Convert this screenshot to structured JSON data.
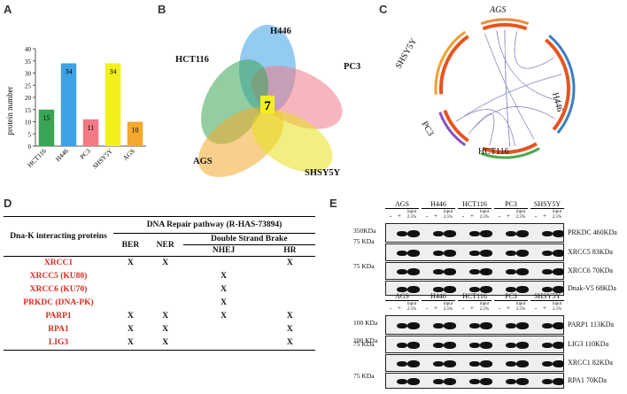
{
  "panels": {
    "a": "A",
    "b": "B",
    "c": "C",
    "d": "D",
    "e": "E"
  },
  "chart_data": {
    "type": "bar",
    "categories": [
      "HCT116",
      "H446",
      "PC3",
      "SHSY5Y",
      "AGS"
    ],
    "values": [
      15,
      34,
      11,
      34,
      10
    ],
    "ylabel": "protein number",
    "ylim": [
      0,
      40
    ],
    "yticks": [
      0,
      5,
      10,
      15,
      20,
      25,
      30,
      35,
      40
    ],
    "colors": [
      "#3aa655",
      "#3da1e6",
      "#f07a86",
      "#f3f11d",
      "#f3a92c"
    ]
  },
  "venn": {
    "labels": {
      "hct116": "HCT116",
      "h446": "H446",
      "pc3": "PC3",
      "ags": "AGS",
      "shsy5y": "SHSY5Y"
    },
    "center": "7"
  },
  "circos": {
    "labels": {
      "ags": "AGS",
      "shsy5y": "SHSY5Y",
      "h446": "H446",
      "pc3": "PC3",
      "hct116": "HCT116"
    }
  },
  "table": {
    "row_header": "Dna-K interacting proteins",
    "pathway_header": "DNA Repair pathway (R-HAS-73894)",
    "col_ber": "BER",
    "col_ner": "NER",
    "dsb_header": "Double Strand Brake",
    "col_nhej": "NHEJ",
    "col_hr": "HR",
    "rows": [
      {
        "name": "XRCC1",
        "ber": "X",
        "ner": "X",
        "nhej": "",
        "hr": "X"
      },
      {
        "name": "XRCC5 (KU80)",
        "ber": "",
        "ner": "",
        "nhej": "X",
        "hr": ""
      },
      {
        "name": "XRCC6 (KU70)",
        "ber": "",
        "ner": "",
        "nhej": "X",
        "hr": ""
      },
      {
        "name": "PRKDC (DNA-PK)",
        "ber": "",
        "ner": "",
        "nhej": "X",
        "hr": ""
      },
      {
        "name": "PARP1",
        "ber": "X",
        "ner": "X",
        "nhej": "X",
        "hr": "X"
      },
      {
        "name": "RPA1",
        "ber": "X",
        "ner": "X",
        "nhej": "",
        "hr": "X"
      },
      {
        "name": "LIG3",
        "ber": "X",
        "ner": "X",
        "nhej": "",
        "hr": "X"
      }
    ]
  },
  "blots": {
    "cell_lines": [
      "AGS",
      "H446",
      "HCT116",
      "PC3",
      "SHSY5Y"
    ],
    "lane_labels": {
      "neg": "-",
      "pos": "+",
      "input": "input 2.5%"
    },
    "top": {
      "markers": [
        "350KDa",
        "75 KDa",
        "75 KDa"
      ],
      "proteins": [
        "PRKDC 460KDa",
        "XRCC5 83KDa",
        "XRCC6 70KDa",
        "Dnak-V5 68KDa"
      ]
    },
    "bottom": {
      "markers": [
        "100 KDa",
        "100 KDa",
        "75 KDa",
        "75 KDa"
      ],
      "proteins": [
        "PARP1 113KDa",
        "LIG3 110KDa",
        "XRCC1 82KDa",
        "RPA1 70KDa"
      ]
    }
  }
}
